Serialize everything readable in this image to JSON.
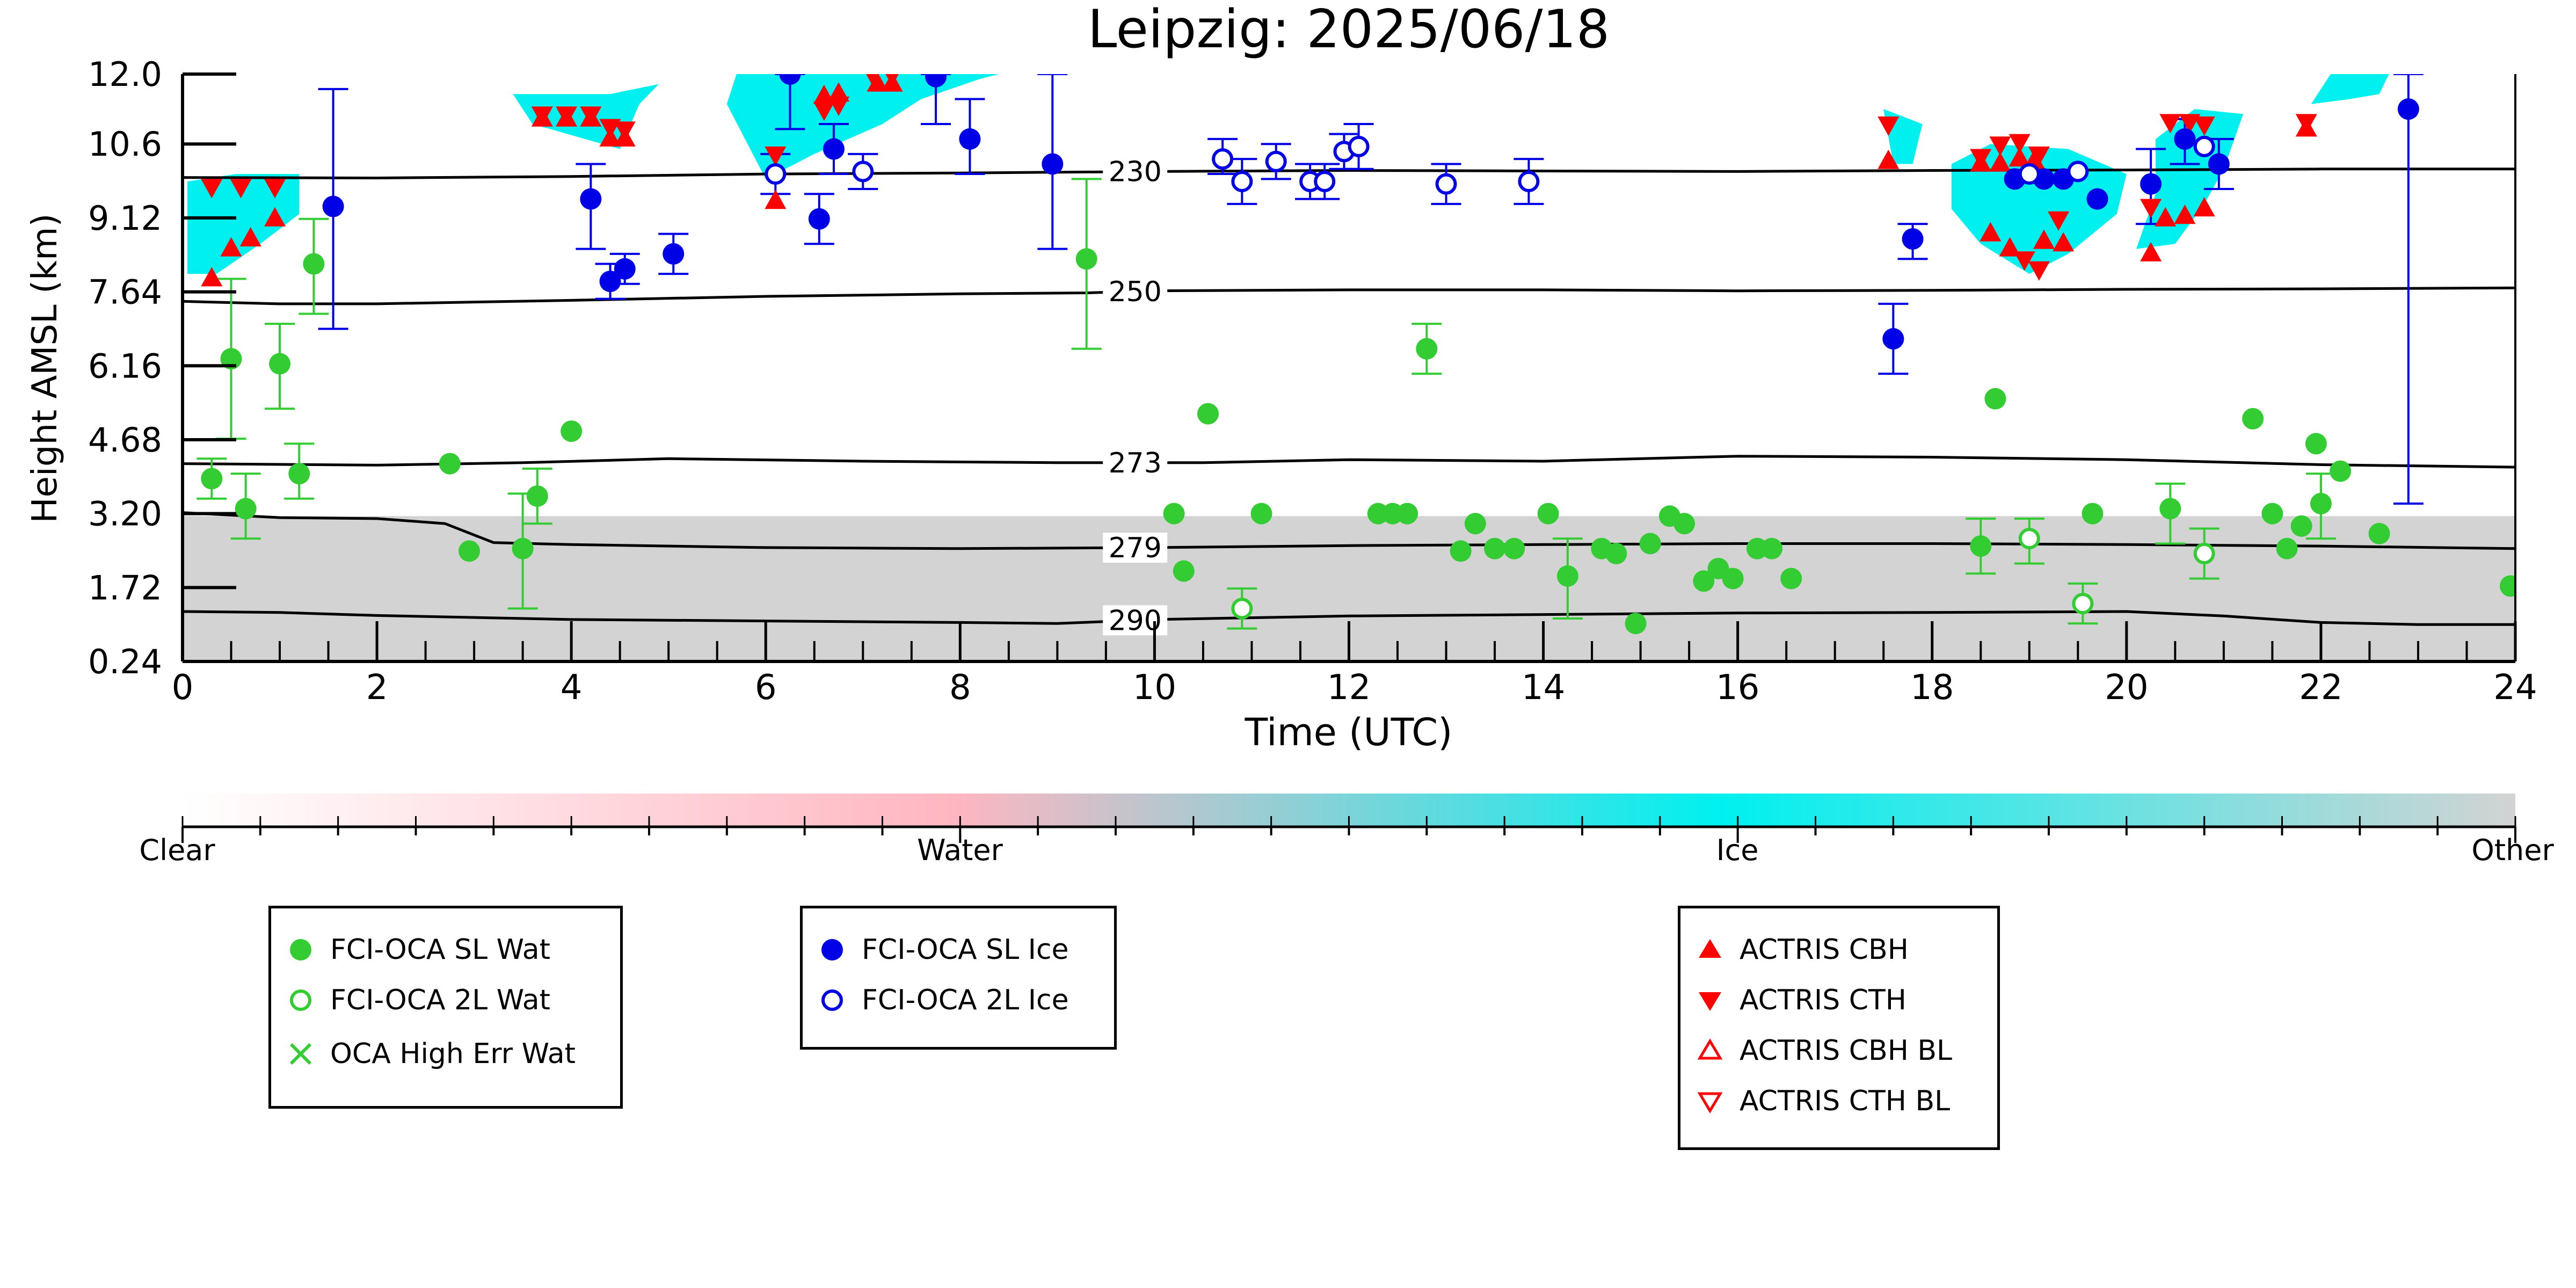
{
  "chart_data": {
    "type": "scatter",
    "title": "Leipzig: 2025/06/18",
    "xlabel": "Time (UTC)",
    "ylabel": "Height AMSL (km)",
    "xlim": [
      0,
      24
    ],
    "ylim": [
      0.24,
      12.0
    ],
    "x_ticks": [
      "0",
      "2",
      "4",
      "6",
      "8",
      "10",
      "12",
      "14",
      "16",
      "18",
      "20",
      "22",
      "24"
    ],
    "y_ticks": [
      "0.24",
      "1.72",
      "3.20",
      "4.68",
      "6.16",
      "7.64",
      "9.12",
      "10.6",
      "12.0"
    ],
    "y_tick_values": [
      0.24,
      1.72,
      3.2,
      4.68,
      6.16,
      7.64,
      9.12,
      10.6,
      12.0
    ],
    "grid": false,
    "colors": {
      "sl_wat": "#33cc33",
      "sl_ice": "#0000e6",
      "actris": "#ff0000",
      "ice": "#00f0f0",
      "water": "#ffb6c1",
      "other": "#d3d3d3"
    },
    "colorbar": {
      "labels": [
        "Clear",
        "Water",
        "Ice",
        "Other"
      ]
    },
    "isotherms": [
      {
        "label": "230",
        "label_x": 9.8,
        "points": [
          [
            0,
            9.93
          ],
          [
            2,
            9.92
          ],
          [
            4,
            9.95
          ],
          [
            6,
            10.0
          ],
          [
            8,
            10.02
          ],
          [
            10,
            10.05
          ],
          [
            12,
            10.07
          ],
          [
            14,
            10.06
          ],
          [
            16,
            10.05
          ],
          [
            18,
            10.07
          ],
          [
            20,
            10.08
          ],
          [
            22,
            10.1
          ],
          [
            24,
            10.1
          ]
        ]
      },
      {
        "label": "250",
        "label_x": 9.8,
        "points": [
          [
            0,
            7.45
          ],
          [
            1,
            7.4
          ],
          [
            2,
            7.4
          ],
          [
            4,
            7.47
          ],
          [
            6,
            7.55
          ],
          [
            8,
            7.6
          ],
          [
            9.3,
            7.62
          ],
          [
            10,
            7.66
          ],
          [
            12,
            7.68
          ],
          [
            14,
            7.68
          ],
          [
            16,
            7.66
          ],
          [
            18,
            7.67
          ],
          [
            20,
            7.69
          ],
          [
            22,
            7.7
          ],
          [
            24,
            7.72
          ]
        ]
      },
      {
        "label": "273",
        "label_x": 9.8,
        "points": [
          [
            0,
            4.2
          ],
          [
            2,
            4.17
          ],
          [
            3.5,
            4.22
          ],
          [
            5,
            4.3
          ],
          [
            7,
            4.25
          ],
          [
            9,
            4.22
          ],
          [
            10.5,
            4.22
          ],
          [
            12,
            4.28
          ],
          [
            14,
            4.25
          ],
          [
            16,
            4.35
          ],
          [
            18,
            4.33
          ],
          [
            20,
            4.28
          ],
          [
            22,
            4.18
          ],
          [
            24,
            4.13
          ]
        ]
      },
      {
        "label": "279",
        "label_x": 9.8,
        "points": [
          [
            0,
            3.22
          ],
          [
            1,
            3.12
          ],
          [
            2,
            3.1
          ],
          [
            2.7,
            3.0
          ],
          [
            3.2,
            2.62
          ],
          [
            4,
            2.58
          ],
          [
            6,
            2.52
          ],
          [
            8,
            2.5
          ],
          [
            10,
            2.52
          ],
          [
            12,
            2.56
          ],
          [
            14,
            2.58
          ],
          [
            16,
            2.6
          ],
          [
            18,
            2.6
          ],
          [
            20,
            2.58
          ],
          [
            22,
            2.55
          ],
          [
            24,
            2.5
          ]
        ]
      },
      {
        "label": "290",
        "label_x": 9.8,
        "points": [
          [
            0,
            1.24
          ],
          [
            1,
            1.22
          ],
          [
            2,
            1.16
          ],
          [
            4,
            1.08
          ],
          [
            6,
            1.05
          ],
          [
            8,
            1.02
          ],
          [
            9,
            1.0
          ],
          [
            10,
            1.08
          ],
          [
            12,
            1.15
          ],
          [
            14,
            1.18
          ],
          [
            16,
            1.21
          ],
          [
            18,
            1.22
          ],
          [
            20,
            1.24
          ],
          [
            21,
            1.15
          ],
          [
            22,
            1.02
          ],
          [
            23,
            0.98
          ],
          [
            24,
            0.98
          ]
        ]
      }
    ],
    "sl_wat": [
      {
        "x": 0.3,
        "y": 3.9,
        "lo": 3.5,
        "hi": 4.3
      },
      {
        "x": 0.5,
        "y": 6.3,
        "lo": 4.7,
        "hi": 7.9
      },
      {
        "x": 0.65,
        "y": 3.3,
        "lo": 2.7,
        "hi": 4.0
      },
      {
        "x": 1.0,
        "y": 6.2,
        "lo": 5.3,
        "hi": 7.0
      },
      {
        "x": 1.2,
        "y": 4.0,
        "lo": 3.5,
        "hi": 4.6
      },
      {
        "x": 1.35,
        "y": 8.2,
        "lo": 7.2,
        "hi": 9.1
      },
      {
        "x": 2.75,
        "y": 4.2
      },
      {
        "x": 2.95,
        "y": 2.45
      },
      {
        "x": 3.5,
        "y": 2.5,
        "lo": 1.3,
        "hi": 3.6
      },
      {
        "x": 3.65,
        "y": 3.55,
        "lo": 3.0,
        "hi": 4.1
      },
      {
        "x": 4.0,
        "y": 4.85
      },
      {
        "x": 9.3,
        "y": 8.3,
        "lo": 6.5,
        "hi": 9.9
      },
      {
        "x": 10.2,
        "y": 3.2
      },
      {
        "x": 10.3,
        "y": 2.05
      },
      {
        "x": 10.55,
        "y": 5.2
      },
      {
        "x": 11.1,
        "y": 3.2
      },
      {
        "x": 12.3,
        "y": 3.2
      },
      {
        "x": 12.45,
        "y": 3.2
      },
      {
        "x": 12.6,
        "y": 3.2
      },
      {
        "x": 12.8,
        "y": 6.5,
        "lo": 6.0,
        "hi": 7.0
      },
      {
        "x": 13.15,
        "y": 2.45
      },
      {
        "x": 13.3,
        "y": 3.0
      },
      {
        "x": 13.5,
        "y": 2.5
      },
      {
        "x": 13.7,
        "y": 2.5
      },
      {
        "x": 14.05,
        "y": 3.2
      },
      {
        "x": 14.25,
        "y": 1.95,
        "lo": 1.1,
        "hi": 2.7
      },
      {
        "x": 14.6,
        "y": 2.5
      },
      {
        "x": 14.75,
        "y": 2.4
      },
      {
        "x": 14.95,
        "y": 1.0
      },
      {
        "x": 15.1,
        "y": 2.6
      },
      {
        "x": 15.3,
        "y": 3.15
      },
      {
        "x": 15.45,
        "y": 3.0
      },
      {
        "x": 15.65,
        "y": 1.85
      },
      {
        "x": 15.8,
        "y": 2.1
      },
      {
        "x": 15.95,
        "y": 1.9
      },
      {
        "x": 16.2,
        "y": 2.5
      },
      {
        "x": 16.35,
        "y": 2.5
      },
      {
        "x": 16.55,
        "y": 1.9
      },
      {
        "x": 18.5,
        "y": 2.55,
        "lo": 2.0,
        "hi": 3.1
      },
      {
        "x": 18.65,
        "y": 5.5
      },
      {
        "x": 19.65,
        "y": 3.2
      },
      {
        "x": 20.45,
        "y": 3.3,
        "lo": 2.6,
        "hi": 3.8
      },
      {
        "x": 21.3,
        "y": 5.1
      },
      {
        "x": 21.5,
        "y": 3.2
      },
      {
        "x": 21.65,
        "y": 2.5
      },
      {
        "x": 21.8,
        "y": 2.95
      },
      {
        "x": 21.95,
        "y": 4.6
      },
      {
        "x": 22.0,
        "y": 3.4,
        "lo": 2.7,
        "hi": 4.0
      },
      {
        "x": 22.2,
        "y": 4.05
      },
      {
        "x": 22.6,
        "y": 2.8
      },
      {
        "x": 23.95,
        "y": 1.75
      }
    ],
    "tl_wat": [
      {
        "x": 10.9,
        "y": 1.3,
        "lo": 0.9,
        "hi": 1.7
      },
      {
        "x": 19.0,
        "y": 2.7,
        "lo": 2.2,
        "hi": 3.1
      },
      {
        "x": 19.55,
        "y": 1.4,
        "lo": 1.0,
        "hi": 1.8
      },
      {
        "x": 20.8,
        "y": 2.4,
        "lo": 1.9,
        "hi": 2.9
      }
    ],
    "sl_ice": [
      {
        "x": 1.55,
        "y": 9.35,
        "lo": 6.9,
        "hi": 11.7
      },
      {
        "x": 4.2,
        "y": 9.5,
        "lo": 8.5,
        "hi": 10.2
      },
      {
        "x": 4.4,
        "y": 7.85,
        "lo": 7.5,
        "hi": 8.2
      },
      {
        "x": 4.55,
        "y": 8.1,
        "lo": 7.8,
        "hi": 8.4
      },
      {
        "x": 5.05,
        "y": 8.4,
        "lo": 8.0,
        "hi": 8.8
      },
      {
        "x": 6.25,
        "y": 12.0,
        "lo": 10.9,
        "hi": 12.0
      },
      {
        "x": 6.55,
        "y": 9.1,
        "lo": 8.6,
        "hi": 9.6
      },
      {
        "x": 6.7,
        "y": 10.5,
        "lo": 10.0,
        "hi": 11.0
      },
      {
        "x": 7.75,
        "y": 11.95,
        "lo": 11.0,
        "hi": 12.0
      },
      {
        "x": 8.1,
        "y": 10.7,
        "lo": 10.0,
        "hi": 11.5
      },
      {
        "x": 8.95,
        "y": 10.2,
        "lo": 8.5,
        "hi": 12.0
      },
      {
        "x": 17.6,
        "y": 6.7,
        "lo": 6.0,
        "hi": 7.4
      },
      {
        "x": 17.8,
        "y": 8.7,
        "lo": 8.3,
        "hi": 9.0
      },
      {
        "x": 18.85,
        "y": 9.9
      },
      {
        "x": 19.15,
        "y": 9.9
      },
      {
        "x": 19.35,
        "y": 9.9
      },
      {
        "x": 19.7,
        "y": 9.5
      },
      {
        "x": 20.25,
        "y": 9.8,
        "lo": 9.0,
        "hi": 10.5
      },
      {
        "x": 20.6,
        "y": 10.7,
        "lo": 10.2,
        "hi": 11.1
      },
      {
        "x": 20.95,
        "y": 10.2,
        "lo": 9.7,
        "hi": 10.7
      },
      {
        "x": 22.9,
        "y": 11.3,
        "lo": 3.4,
        "hi": 12.0
      }
    ],
    "tl_ice": [
      {
        "x": 6.1,
        "y": 10.0,
        "lo": 9.6,
        "hi": 10.4
      },
      {
        "x": 7.0,
        "y": 10.05,
        "lo": 9.7,
        "hi": 10.4
      },
      {
        "x": 10.7,
        "y": 10.3,
        "lo": 10.0,
        "hi": 10.7
      },
      {
        "x": 10.9,
        "y": 9.85,
        "lo": 9.4,
        "hi": 10.3
      },
      {
        "x": 11.25,
        "y": 10.25,
        "lo": 9.9,
        "hi": 10.6
      },
      {
        "x": 11.6,
        "y": 9.85,
        "lo": 9.5,
        "hi": 10.2
      },
      {
        "x": 11.75,
        "y": 9.85,
        "lo": 9.5,
        "hi": 10.2
      },
      {
        "x": 11.95,
        "y": 10.45,
        "lo": 10.1,
        "hi": 10.8
      },
      {
        "x": 12.1,
        "y": 10.55,
        "lo": 10.1,
        "hi": 11.0
      },
      {
        "x": 13.0,
        "y": 9.8,
        "lo": 9.4,
        "hi": 10.2
      },
      {
        "x": 13.85,
        "y": 9.85,
        "lo": 9.4,
        "hi": 10.3
      },
      {
        "x": 19.0,
        "y": 10.0
      },
      {
        "x": 19.5,
        "y": 10.05
      },
      {
        "x": 20.8,
        "y": 10.55
      }
    ],
    "cbh": [
      {
        "x": 0.3,
        "y": 7.9
      },
      {
        "x": 0.5,
        "y": 8.5
      },
      {
        "x": 0.7,
        "y": 8.7
      },
      {
        "x": 0.95,
        "y": 9.1
      },
      {
        "x": 3.7,
        "y": 11.1
      },
      {
        "x": 3.95,
        "y": 11.1
      },
      {
        "x": 4.2,
        "y": 11.1
      },
      {
        "x": 4.4,
        "y": 10.7
      },
      {
        "x": 4.55,
        "y": 10.7
      },
      {
        "x": 6.1,
        "y": 9.45
      },
      {
        "x": 6.6,
        "y": 11.55
      },
      {
        "x": 6.75,
        "y": 11.6
      },
      {
        "x": 7.15,
        "y": 11.8
      },
      {
        "x": 7.3,
        "y": 11.8
      },
      {
        "x": 17.55,
        "y": 10.25
      },
      {
        "x": 18.5,
        "y": 10.2
      },
      {
        "x": 18.7,
        "y": 10.2
      },
      {
        "x": 18.9,
        "y": 10.3
      },
      {
        "x": 19.05,
        "y": 10.25
      },
      {
        "x": 18.6,
        "y": 8.8
      },
      {
        "x": 18.8,
        "y": 8.5
      },
      {
        "x": 19.15,
        "y": 8.65
      },
      {
        "x": 19.35,
        "y": 8.6
      },
      {
        "x": 20.25,
        "y": 8.4
      },
      {
        "x": 20.4,
        "y": 9.1
      },
      {
        "x": 20.6,
        "y": 9.15
      },
      {
        "x": 20.8,
        "y": 9.3
      },
      {
        "x": 21.85,
        "y": 10.9
      }
    ],
    "cth": [
      {
        "x": 0.3,
        "y": 9.75
      },
      {
        "x": 0.6,
        "y": 9.75
      },
      {
        "x": 0.95,
        "y": 9.75
      },
      {
        "x": 3.7,
        "y": 11.2
      },
      {
        "x": 3.95,
        "y": 11.2
      },
      {
        "x": 4.2,
        "y": 11.2
      },
      {
        "x": 4.4,
        "y": 10.95
      },
      {
        "x": 4.55,
        "y": 10.9
      },
      {
        "x": 6.1,
        "y": 10.4
      },
      {
        "x": 6.6,
        "y": 11.3
      },
      {
        "x": 6.75,
        "y": 11.4
      },
      {
        "x": 7.1,
        "y": 12.0
      },
      {
        "x": 7.3,
        "y": 12.0
      },
      {
        "x": 17.55,
        "y": 11.0
      },
      {
        "x": 18.5,
        "y": 10.35
      },
      {
        "x": 18.7,
        "y": 10.6
      },
      {
        "x": 18.9,
        "y": 10.65
      },
      {
        "x": 19.1,
        "y": 10.4
      },
      {
        "x": 18.95,
        "y": 8.3
      },
      {
        "x": 19.1,
        "y": 8.1
      },
      {
        "x": 19.3,
        "y": 9.1
      },
      {
        "x": 20.25,
        "y": 9.35
      },
      {
        "x": 20.45,
        "y": 11.05
      },
      {
        "x": 20.65,
        "y": 11.05
      },
      {
        "x": 20.8,
        "y": 11.0
      },
      {
        "x": 21.85,
        "y": 11.05
      }
    ],
    "ice_regions": [
      [
        [
          0.05,
          8.0
        ],
        [
          0.05,
          9.85
        ],
        [
          0.55,
          10.0
        ],
        [
          1.2,
          10.0
        ],
        [
          1.2,
          9.2
        ],
        [
          0.8,
          8.6
        ],
        [
          0.35,
          8.0
        ]
      ],
      [
        [
          3.4,
          11.6
        ],
        [
          3.6,
          11.0
        ],
        [
          4.5,
          10.5
        ],
        [
          4.7,
          11.4
        ],
        [
          4.9,
          11.8
        ],
        [
          4.4,
          11.6
        ]
      ],
      [
        [
          6.0,
          9.9
        ],
        [
          6.5,
          10.4
        ],
        [
          7.2,
          11.0
        ],
        [
          7.6,
          11.5
        ],
        [
          8.2,
          11.9
        ],
        [
          8.4,
          12.0
        ],
        [
          5.7,
          12.0
        ],
        [
          5.6,
          11.4
        ]
      ],
      [
        [
          17.5,
          11.3
        ],
        [
          17.6,
          10.2
        ],
        [
          17.8,
          10.2
        ],
        [
          17.9,
          11.0
        ]
      ],
      [
        [
          18.2,
          9.3
        ],
        [
          18.5,
          8.6
        ],
        [
          19.0,
          8.0
        ],
        [
          19.4,
          8.4
        ],
        [
          19.9,
          9.2
        ],
        [
          20.0,
          10.0
        ],
        [
          19.4,
          10.5
        ],
        [
          18.6,
          10.6
        ],
        [
          18.2,
          10.2
        ]
      ],
      [
        [
          20.1,
          8.5
        ],
        [
          20.3,
          9.6
        ],
        [
          20.3,
          10.7
        ],
        [
          20.7,
          11.3
        ],
        [
          21.2,
          11.2
        ],
        [
          21.0,
          10.1
        ],
        [
          20.8,
          9.4
        ],
        [
          20.5,
          8.6
        ]
      ],
      [
        [
          21.9,
          11.4
        ],
        [
          22.3,
          11.5
        ],
        [
          22.6,
          11.6
        ],
        [
          22.7,
          12.0
        ],
        [
          22.1,
          12.0
        ]
      ]
    ],
    "other_region": {
      "top_y": 3.15,
      "bottom_y": 0.24
    }
  },
  "legends": {
    "wat": [
      "FCI-OCA SL Wat",
      "FCI-OCA 2L Wat",
      "OCA High Err Wat"
    ],
    "ice": [
      "FCI-OCA SL Ice",
      "FCI-OCA 2L Ice"
    ],
    "actris": [
      "ACTRIS CBH",
      "ACTRIS CTH",
      "ACTRIS CBH BL",
      "ACTRIS CTH BL"
    ]
  }
}
